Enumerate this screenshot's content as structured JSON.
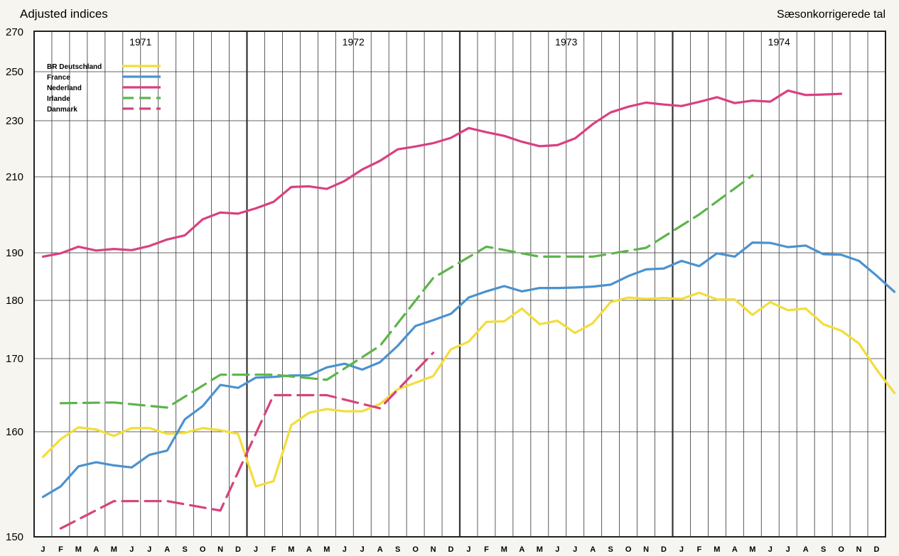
{
  "chart_data": {
    "type": "line",
    "title": "Adjusted indices",
    "subtitle": "Sæsonkorrigerede tal",
    "y_ticks": [
      150,
      160,
      170,
      180,
      190,
      210,
      230,
      250,
      270
    ],
    "ylim": [
      150,
      270
    ],
    "years": [
      "1971",
      "1972",
      "1973",
      "1974"
    ],
    "months": [
      "J",
      "F",
      "M",
      "A",
      "M",
      "J",
      "J",
      "A",
      "S",
      "O",
      "N",
      "D"
    ],
    "grid": true,
    "legend_position": "top-left",
    "series": [
      {
        "name": "BR Deutschland",
        "color": "#f2dd3a",
        "dash": false,
        "start": 0,
        "values": [
          157.6,
          159.3,
          160.6,
          160.3,
          159.6,
          160.5,
          160.5,
          159.8,
          159.9,
          160.5,
          160.2,
          159.8,
          154.8,
          155.3,
          160.9,
          162.6,
          163.1,
          162.8,
          162.8,
          163.8,
          165.8,
          166.7,
          167.6,
          171.6,
          172.9,
          176.3,
          176.4,
          178.6,
          175.9,
          176.5,
          174.4,
          176.1,
          179.7,
          180.6,
          180.3,
          180.5,
          180.3,
          181.6,
          180.2,
          180.2,
          177.5,
          179.7,
          178.3,
          178.6,
          175.9,
          174.8,
          172.6,
          168.5,
          165.3
        ]
      },
      {
        "name": "France",
        "color": "#4a92cf",
        "dash": false,
        "start": 0,
        "values": [
          153.8,
          154.8,
          156.7,
          157.1,
          156.8,
          156.6,
          157.8,
          158.2,
          161.7,
          163.5,
          166.4,
          166.0,
          167.4,
          167.5,
          167.7,
          167.7,
          168.8,
          169.3,
          168.5,
          169.5,
          172.2,
          175.6,
          176.6,
          177.7,
          180.6,
          181.9,
          183.0,
          181.9,
          182.6,
          182.6,
          182.7,
          182.9,
          183.3,
          185.1,
          186.5,
          186.7,
          188.3,
          187.2,
          189.9,
          189.2,
          192.7,
          192.6,
          191.5,
          191.9,
          189.7,
          189.6,
          188.3,
          185.2,
          181.8
        ]
      },
      {
        "name": "Nederland",
        "color": "#d9407f",
        "dash": false,
        "start": 0,
        "values": [
          189.2,
          189.9,
          191.6,
          190.6,
          191.0,
          190.7,
          191.8,
          193.5,
          194.6,
          198.8,
          200.6,
          200.3,
          201.7,
          203.4,
          207.3,
          207.5,
          206.8,
          208.9,
          212.6,
          215.7,
          219.8,
          220.8,
          222.0,
          223.9,
          227.4,
          225.9,
          224.6,
          222.5,
          220.9,
          221.3,
          223.7,
          228.8,
          233.4,
          235.7,
          237.4,
          236.6,
          236.0,
          237.7,
          239.6,
          237.2,
          238.2,
          237.8,
          242.3,
          240.5,
          240.7,
          241.0
        ]
      },
      {
        "name": "Irlande",
        "color": "#5cb54a",
        "dash": true,
        "start": 0,
        "values": [
          null,
          163.9,
          null,
          null,
          164.0,
          null,
          null,
          163.3,
          null,
          null,
          167.8,
          null,
          null,
          167.8,
          null,
          null,
          167.1,
          null,
          null,
          172.2,
          null,
          null,
          184.7,
          null,
          null,
          191.6,
          null,
          null,
          189.2,
          null,
          null,
          189.2,
          null,
          null,
          191.3,
          null,
          null,
          200.1,
          null,
          null,
          210.5
        ]
      },
      {
        "name": "Danmark",
        "color": "#d6437c",
        "dash": true,
        "start": 0,
        "values": [
          null,
          150.8,
          null,
          null,
          153.4,
          null,
          null,
          153.4,
          null,
          null,
          152.5,
          null,
          null,
          165.0,
          null,
          null,
          165.0,
          null,
          null,
          163.2,
          null,
          null,
          171.0
        ]
      }
    ]
  }
}
